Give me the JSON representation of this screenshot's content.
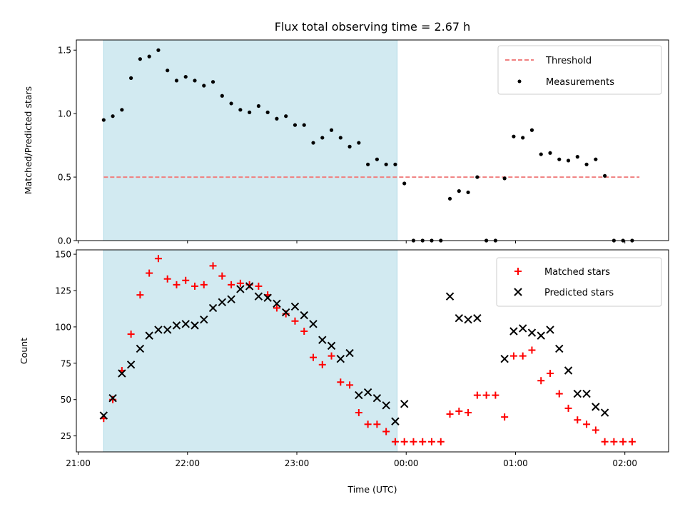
{
  "chart_data": [
    {
      "type": "scatter",
      "title": "Flux total observing time = 2.67 h",
      "ylabel": "Matched/Predicted stars",
      "xlabel": "",
      "ylim": [
        0,
        1.58
      ],
      "yticks": [
        "0.0",
        "0.5",
        "1.0",
        "1.5"
      ],
      "ytick_values": [
        0,
        0.5,
        1.0,
        1.5
      ],
      "grid": false,
      "legend_position": "top-right",
      "threshold": {
        "name": "Threshold",
        "value": 0.5,
        "x_start": "21:14",
        "x_end": "02:08",
        "color": "#f08080"
      },
      "shaded_span": {
        "x_start": "21:14",
        "x_end": "23:55",
        "color": "#add8e6"
      },
      "series": [
        {
          "name": "Measurements",
          "color": "#000000",
          "x": [
            "21:14",
            "21:19",
            "21:24",
            "21:29",
            "21:34",
            "21:39",
            "21:44",
            "21:49",
            "21:54",
            "21:59",
            "22:04",
            "22:09",
            "22:14",
            "22:19",
            "22:24",
            "22:29",
            "22:34",
            "22:39",
            "22:44",
            "22:49",
            "22:54",
            "22:59",
            "23:04",
            "23:09",
            "23:14",
            "23:19",
            "23:24",
            "23:29",
            "23:34",
            "23:39",
            "23:44",
            "23:49",
            "23:54",
            "23:59",
            "00:04",
            "00:09",
            "00:14",
            "00:19",
            "00:24",
            "00:29",
            "00:34",
            "00:39",
            "00:44",
            "00:49",
            "00:54",
            "00:59",
            "01:04",
            "01:09",
            "01:14",
            "01:19",
            "01:24",
            "01:29",
            "01:34",
            "01:39",
            "01:44",
            "01:49",
            "01:54",
            "01:59",
            "02:04"
          ],
          "values": [
            0.95,
            0.98,
            1.03,
            1.28,
            1.43,
            1.45,
            1.5,
            1.34,
            1.26,
            1.29,
            1.26,
            1.22,
            1.25,
            1.14,
            1.08,
            1.03,
            1.01,
            1.06,
            1.01,
            0.96,
            0.98,
            0.91,
            0.91,
            0.77,
            0.81,
            0.87,
            0.81,
            0.74,
            0.77,
            0.6,
            0.64,
            0.6,
            0.6,
            0.45,
            0.0,
            0.0,
            0.0,
            0.0,
            0.33,
            0.39,
            0.38,
            0.5,
            0.0,
            0.0,
            0.49,
            0.82,
            0.81,
            0.87,
            0.68,
            0.69,
            0.64,
            0.63,
            0.66,
            0.6,
            0.64,
            0.51,
            0.0,
            0.0,
            0.0
          ]
        }
      ]
    },
    {
      "type": "scatter",
      "title": "",
      "ylabel": "Count",
      "xlabel": "Time (UTC)",
      "ylim": [
        14,
        153
      ],
      "yticks": [
        "25",
        "50",
        "75",
        "100",
        "125",
        "150"
      ],
      "ytick_values": [
        25,
        50,
        75,
        100,
        125,
        150
      ],
      "xticks": [
        "21:00",
        "22:00",
        "23:00",
        "00:00",
        "01:00",
        "02:00"
      ],
      "xlim": [
        "20:59",
        "02:24"
      ],
      "grid": false,
      "legend_position": "top-right",
      "shaded_span": {
        "x_start": "21:14",
        "x_end": "23:55",
        "color": "#add8e6"
      },
      "series": [
        {
          "name": "Matched stars",
          "marker": "plus",
          "color": "#ff0000",
          "x": [
            "21:14",
            "21:19",
            "21:24",
            "21:29",
            "21:34",
            "21:39",
            "21:44",
            "21:49",
            "21:54",
            "21:59",
            "22:04",
            "22:09",
            "22:14",
            "22:19",
            "22:24",
            "22:29",
            "22:34",
            "22:39",
            "22:44",
            "22:49",
            "22:54",
            "22:59",
            "23:04",
            "23:09",
            "23:14",
            "23:19",
            "23:24",
            "23:29",
            "23:34",
            "23:39",
            "23:44",
            "23:49",
            "23:54",
            "23:59",
            "00:04",
            "00:09",
            "00:14",
            "00:19",
            "00:24",
            "00:29",
            "00:34",
            "00:39",
            "00:44",
            "00:49",
            "00:54",
            "00:59",
            "01:04",
            "01:09",
            "01:14",
            "01:19",
            "01:24",
            "01:29",
            "01:34",
            "01:39",
            "01:44",
            "01:49",
            "01:54",
            "01:59",
            "02:04"
          ],
          "values": [
            37,
            50,
            70,
            95,
            122,
            137,
            147,
            133,
            129,
            132,
            128,
            129,
            142,
            135,
            129,
            130,
            129,
            128,
            122,
            113,
            109,
            104,
            97,
            79,
            74,
            80,
            62,
            60,
            41,
            33,
            33,
            28,
            21,
            21,
            21,
            21,
            21,
            21,
            40,
            42,
            41,
            53,
            53,
            53,
            38,
            80,
            80,
            84,
            63,
            68,
            54,
            44,
            36,
            33,
            29,
            21,
            21,
            21,
            21
          ]
        },
        {
          "name": "Predicted stars",
          "marker": "x",
          "color": "#000000",
          "x": [
            "21:14",
            "21:19",
            "21:24",
            "21:29",
            "21:34",
            "21:39",
            "21:44",
            "21:49",
            "21:54",
            "21:59",
            "22:04",
            "22:09",
            "22:14",
            "22:19",
            "22:24",
            "22:29",
            "22:34",
            "22:39",
            "22:44",
            "22:49",
            "22:54",
            "22:59",
            "23:04",
            "23:09",
            "23:14",
            "23:19",
            "23:24",
            "23:29",
            "23:34",
            "23:39",
            "23:44",
            "23:49",
            "23:54",
            "23:59",
            "00:24",
            "00:29",
            "00:34",
            "00:39",
            "00:54",
            "00:59",
            "01:04",
            "01:09",
            "01:14",
            "01:19",
            "01:24",
            "01:29",
            "01:34",
            "01:39",
            "01:44",
            "01:49"
          ],
          "values": [
            39,
            51,
            68,
            74,
            85,
            94,
            98,
            98,
            101,
            102,
            101,
            105,
            113,
            117,
            119,
            126,
            128,
            121,
            120,
            116,
            110,
            114,
            108,
            102,
            91,
            87,
            78,
            82,
            53,
            55,
            51,
            46,
            35,
            47,
            121,
            106,
            105,
            106,
            78,
            97,
            99,
            96,
            94,
            98,
            85,
            70,
            54,
            54,
            45,
            41
          ]
        }
      ]
    }
  ]
}
